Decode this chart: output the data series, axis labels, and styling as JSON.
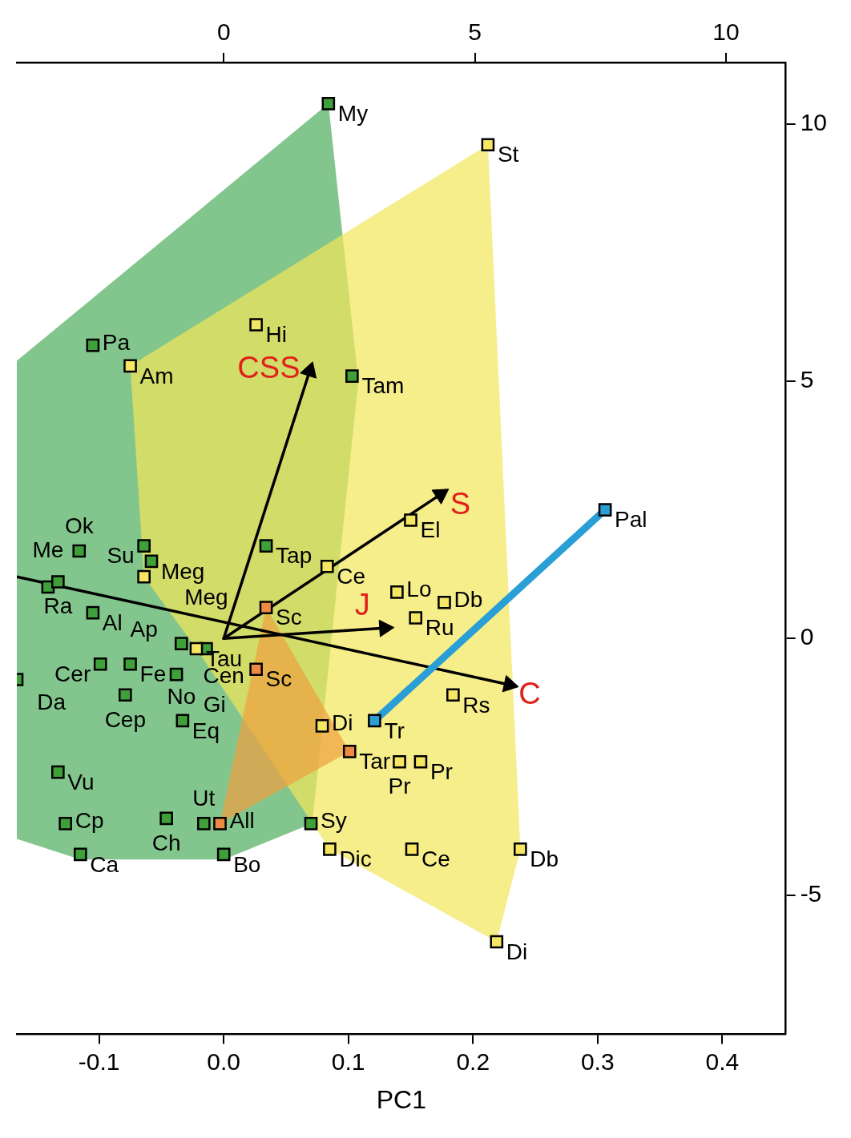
{
  "chart_data": {
    "type": "scatter",
    "xlabel": "PC1",
    "marker": "square",
    "xlim": [
      -0.166,
      0.451
    ],
    "xticks": [
      -0.1,
      {
        "value": 0,
        "label": "0.0"
      },
      0.1,
      0.2,
      0.3,
      0.4
    ],
    "x2lim": [
      -4.12,
      11.19
    ],
    "x2ticks": [
      0,
      5,
      10
    ],
    "ylim": [
      -7.7,
      11.2
    ],
    "yticks": [
      -5,
      0,
      5,
      10
    ],
    "series": [
      {
        "type": "area",
        "marker": "none",
        "color": "#4fae5c",
        "x": [
          -0.166,
          0.084,
          0.108,
          0.071,
          0.0,
          -0.115,
          -0.166,
          -0.166
        ],
        "values": [
          5.4,
          10.4,
          5.0,
          -3.6,
          -4.3,
          -4.3,
          -3.9,
          5.4
        ]
      },
      {
        "type": "area",
        "marker": "none",
        "color": "#f2e55a",
        "x": [
          -0.075,
          0.212,
          0.238,
          0.219,
          0.085,
          -0.022,
          -0.064,
          -0.075
        ],
        "values": [
          5.3,
          9.6,
          -4.1,
          -5.9,
          -4.1,
          -0.2,
          1.2,
          5.3
        ]
      },
      {
        "type": "area",
        "marker": "none",
        "color": "#f0a040",
        "x": [
          0.034,
          0.101,
          -0.003,
          0.034
        ],
        "values": [
          0.6,
          -2.2,
          -3.6,
          0.6
        ]
      },
      {
        "type": "line",
        "marker": "triangle",
        "color": "#000000",
        "x": [
          0,
          0.069
        ],
        "values": [
          0,
          5.2
        ]
      },
      {
        "type": "line",
        "marker": "triangle",
        "color": "#000000",
        "x": [
          0,
          0.174
        ],
        "values": [
          0,
          2.8
        ]
      },
      {
        "type": "line",
        "marker": "triangle",
        "color": "#000000",
        "x": [
          0,
          0.129
        ],
        "values": [
          0,
          0.2
        ]
      },
      {
        "type": "line",
        "marker": "triangle",
        "color": "#000000",
        "x": [
          -0.166,
          0.229
        ],
        "values": [
          1.2,
          -0.9
        ]
      },
      {
        "color": "#3fa03a",
        "x": [
          0.084,
          -0.105,
          0.103,
          0.034,
          -0.064,
          -0.058,
          -0.116,
          -0.141,
          -0.133,
          -0.105,
          -0.034,
          -0.014,
          -0.099,
          -0.075,
          -0.038,
          -0.079,
          -0.033,
          -0.166,
          -0.133,
          -0.127,
          -0.115,
          -0.046,
          -0.016,
          0.0,
          0.07
        ],
        "values": [
          10.4,
          5.7,
          5.1,
          1.8,
          1.8,
          1.5,
          1.7,
          1.0,
          1.1,
          0.5,
          -0.1,
          -0.2,
          -0.5,
          -0.5,
          -0.7,
          -1.1,
          -1.6,
          -0.8,
          -2.6,
          -3.6,
          -4.2,
          -3.5,
          -3.6,
          -4.2,
          -3.6
        ]
      },
      {
        "color": "#f5e663",
        "x": [
          0.212,
          -0.075,
          0.026,
          -0.064,
          0.083,
          0.15,
          0.139,
          0.177,
          0.154,
          -0.022,
          0.184,
          0.079,
          0.141,
          0.158,
          0.085,
          0.151,
          0.238,
          0.219
        ],
        "values": [
          9.6,
          5.3,
          6.1,
          1.2,
          1.4,
          2.3,
          0.9,
          0.7,
          0.4,
          -0.2,
          -1.1,
          -1.7,
          -2.4,
          -2.4,
          -4.1,
          -4.1,
          -4.1,
          -5.9
        ]
      },
      {
        "color": "#ef8a45",
        "x": [
          0.034,
          0.026,
          0.101,
          -0.003
        ],
        "values": [
          0.6,
          -0.6,
          -2.2,
          -3.6
        ]
      },
      {
        "type": "line",
        "marker": "square",
        "color": "#2a9fd6",
        "x": [
          0.121,
          0.306
        ],
        "values": [
          -1.6,
          2.5
        ]
      }
    ],
    "annotations": [
      {
        "text": "My",
        "x": 0.084,
        "y": 10.4
      },
      {
        "text": "St",
        "x": 0.212,
        "y": 9.6
      },
      {
        "text": "Hi",
        "x": 0.026,
        "y": 6.1
      },
      {
        "text": "Pa",
        "x": -0.105,
        "y": 5.7
      },
      {
        "text": "Am",
        "x": -0.075,
        "y": 5.3
      },
      {
        "text": "Tam",
        "x": 0.103,
        "y": 5.1
      },
      {
        "text": "El",
        "x": 0.15,
        "y": 2.3
      },
      {
        "text": "Pal",
        "x": 0.306,
        "y": 2.5
      },
      {
        "text": "Su",
        "x": -0.064,
        "y": 1.8
      },
      {
        "text": "Tap",
        "x": 0.034,
        "y": 1.8
      },
      {
        "text": "Ok",
        "x": -0.116,
        "y": 1.7
      },
      {
        "text": "Meg",
        "x": -0.058,
        "y": 1.5
      },
      {
        "text": "Ce",
        "x": 0.083,
        "y": 1.4
      },
      {
        "text": "Ap",
        "x": -0.064,
        "y": 1.2
      },
      {
        "text": "Ra",
        "x": -0.133,
        "y": 1.1
      },
      {
        "text": "Me",
        "x": -0.141,
        "y": 1.0
      },
      {
        "text": "Lo",
        "x": 0.139,
        "y": 0.9
      },
      {
        "text": "Db",
        "x": 0.177,
        "y": 0.7
      },
      {
        "text": "Sc",
        "x": 0.034,
        "y": 0.6
      },
      {
        "text": "Al",
        "x": -0.105,
        "y": 0.5
      },
      {
        "text": "Ru",
        "x": 0.154,
        "y": 0.4
      },
      {
        "text": "Cen",
        "x": 0,
        "y": 0
      },
      {
        "text": "No",
        "x": -0.034,
        "y": -0.1
      },
      {
        "text": "Meg",
        "x": -0.014,
        "y": -0.2
      },
      {
        "text": "Tau",
        "x": -0.022,
        "y": -0.2
      },
      {
        "text": "Fe",
        "x": -0.075,
        "y": -0.5
      },
      {
        "text": "Cer",
        "x": -0.099,
        "y": -0.5
      },
      {
        "text": "Sc",
        "x": 0.026,
        "y": -0.6
      },
      {
        "text": "Gi",
        "x": -0.038,
        "y": -0.7
      },
      {
        "text": "Da",
        "x": -0.166,
        "y": -0.8
      },
      {
        "text": "Rs",
        "x": 0.184,
        "y": -1.1
      },
      {
        "text": "Cep",
        "x": -0.079,
        "y": -1.1
      },
      {
        "text": "Eq",
        "x": -0.033,
        "y": -1.6
      },
      {
        "text": "Tr",
        "x": 0.121,
        "y": -1.6
      },
      {
        "text": "Di",
        "x": 0.079,
        "y": -1.7
      },
      {
        "text": "Tar",
        "x": 0.101,
        "y": -2.2
      },
      {
        "text": "Pr",
        "x": 0.158,
        "y": -2.4
      },
      {
        "text": "Pr",
        "x": 0.141,
        "y": -2.4
      },
      {
        "text": "Vu",
        "x": -0.133,
        "y": -2.6
      },
      {
        "text": "Ch",
        "x": -0.046,
        "y": -3.5
      },
      {
        "text": "Cp",
        "x": -0.127,
        "y": -3.6
      },
      {
        "text": "Ut",
        "x": -0.016,
        "y": -3.6
      },
      {
        "text": "All",
        "x": -0.003,
        "y": -3.6
      },
      {
        "text": "Sy",
        "x": 0.07,
        "y": -3.6
      },
      {
        "text": "Ca",
        "x": -0.115,
        "y": -4.2
      },
      {
        "text": "Bo",
        "x": 0.0,
        "y": -4.2
      },
      {
        "text": "Dic",
        "x": 0.085,
        "y": -4.1
      },
      {
        "text": "Ce",
        "x": 0.151,
        "y": -4.1
      },
      {
        "text": "Db",
        "x": 0.238,
        "y": -4.1
      },
      {
        "text": "Di",
        "x": 0.219,
        "y": -5.9
      },
      {
        "text": "CSS",
        "x": 0.069,
        "y": 5.2
      },
      {
        "text": "S",
        "x": 0.174,
        "y": 2.8
      },
      {
        "text": "J",
        "x": 0.129,
        "y": 0.2
      },
      {
        "text": "C",
        "x": 0.229,
        "y": -0.9
      }
    ]
  }
}
